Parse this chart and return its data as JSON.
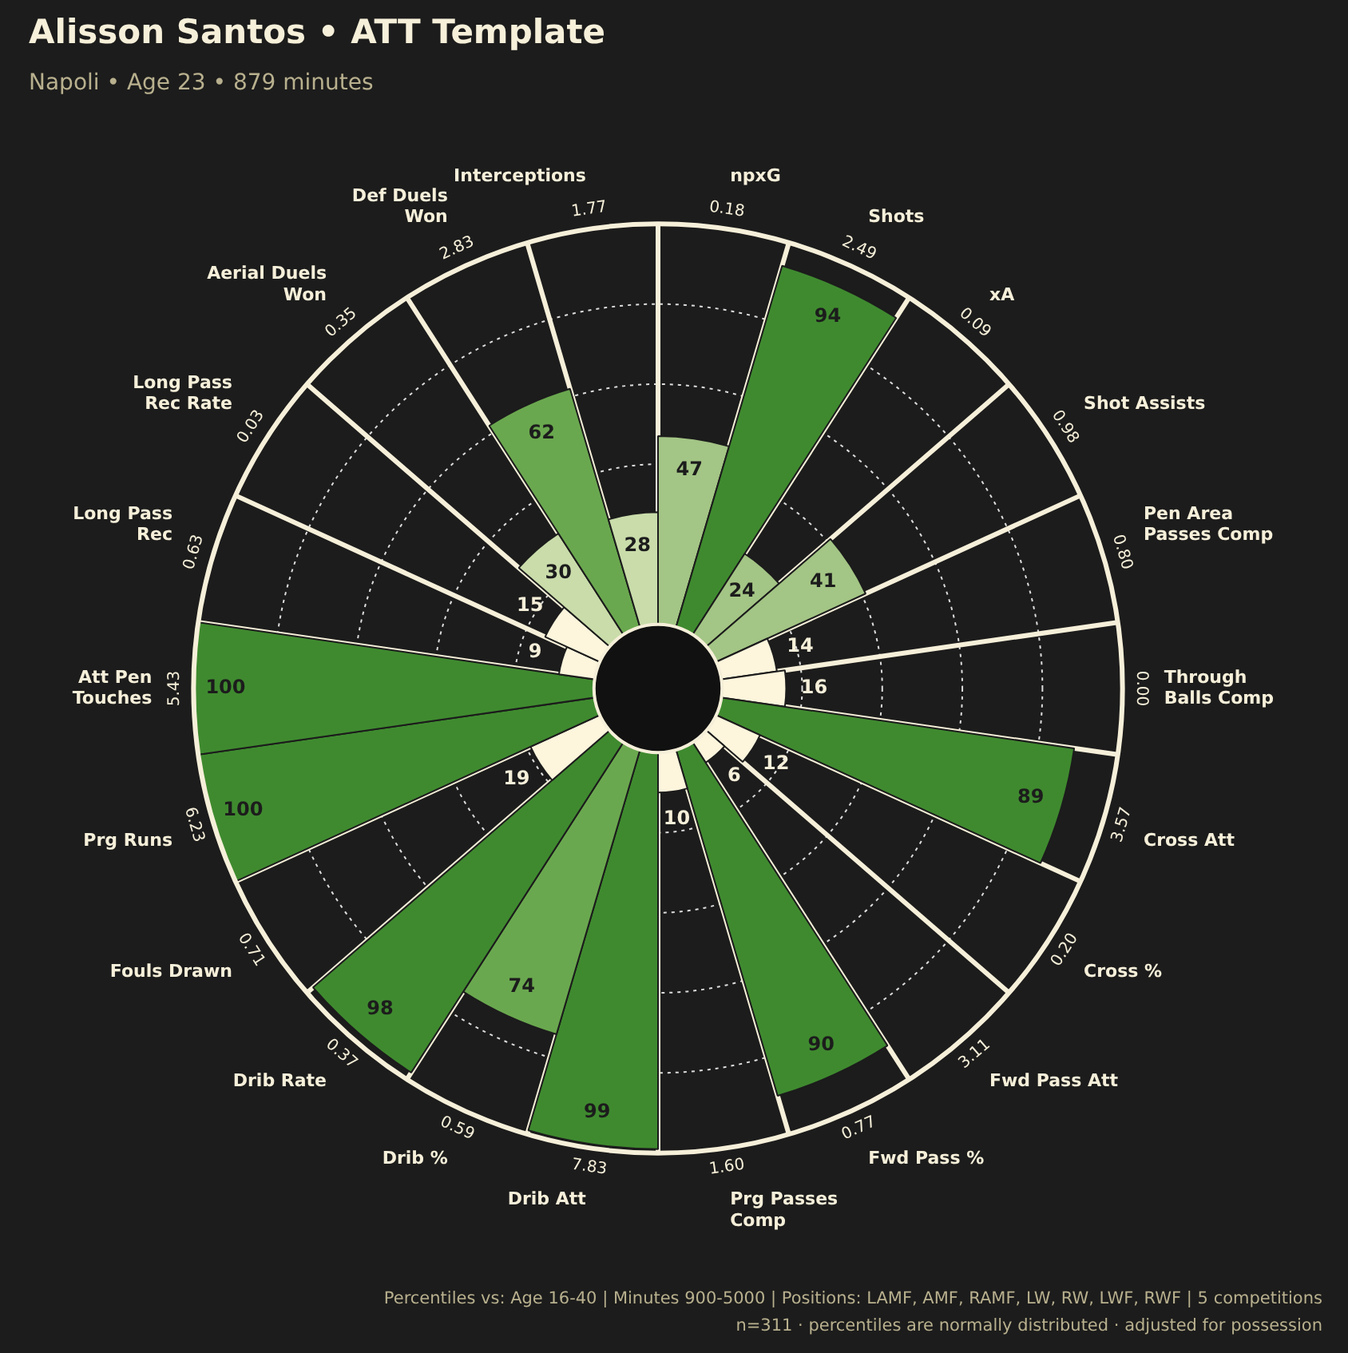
{
  "chart_data": {
    "type": "other",
    "title": "Alisson Santos • ATT Template",
    "subtitle": "Napoli • Age 23 • 879 minutes",
    "categories": [
      "npxG",
      "Shots",
      "xA",
      "Shot Assists",
      "Pen Area Passes Comp",
      "Through Balls Comp",
      "Cross Att",
      "Cross %",
      "Fwd Pass Att",
      "Fwd Pass %",
      "Prg Passes Comp",
      "Drib Att",
      "Drib %",
      "Drib Rate",
      "Fouls Drawn",
      "Prg Runs",
      "Att Pen Touches",
      "Long Pass Rec",
      "Long Pass Rec Rate",
      "Aerial Duels Won",
      "Def Duels Won",
      "Interceptions"
    ],
    "values": [
      47,
      94,
      24,
      41,
      14,
      16,
      89,
      12,
      6,
      90,
      10,
      99,
      74,
      98,
      19,
      100,
      100,
      9,
      15,
      30,
      62,
      28
    ],
    "colors": [
      "#a3c585",
      "#3f8a2f",
      "#a3c585",
      "#a3c585",
      "#fdf5dc",
      "#fdf5dc",
      "#3f8a2f",
      "#fdf5dc",
      "#fdf5dc",
      "#3f8a2f",
      "#fdf5dc",
      "#3f8a2f",
      "#6aa84f",
      "#3f8a2f",
      "#fdf5dc",
      "#3f8a2f",
      "#3f8a2f",
      "#fdf5dc",
      "#fdf5dc",
      "#c9dcaa",
      "#6aa84f",
      "#c9dcaa"
    ],
    "data_labels": true,
    "annotations": [
      {
        "text": "0.18",
        "x": "npxG"
      },
      {
        "text": "2.49",
        "x": "Shots"
      },
      {
        "text": "0.09",
        "x": "xA"
      },
      {
        "text": "0.98",
        "x": "Shot Assists"
      },
      {
        "text": "0.80",
        "x": "Pen Area Passes Comp"
      },
      {
        "text": "0.00",
        "x": "Through Balls Comp"
      },
      {
        "text": "3.57",
        "x": "Cross Att"
      },
      {
        "text": "0.20",
        "x": "Cross %"
      },
      {
        "text": "3.11",
        "x": "Fwd Pass Att"
      },
      {
        "text": "0.77",
        "x": "Fwd Pass %"
      },
      {
        "text": "1.60",
        "x": "Prg Passes Comp"
      },
      {
        "text": "7.83",
        "x": "Drib Att"
      },
      {
        "text": "0.59",
        "x": "Drib %"
      },
      {
        "text": "0.37",
        "x": "Drib Rate"
      },
      {
        "text": "0.71",
        "x": "Fouls Drawn"
      },
      {
        "text": "6.23",
        "x": "Prg Runs"
      },
      {
        "text": "5.43",
        "x": "Att Pen Touches"
      },
      {
        "text": "0.63",
        "x": "Long Pass Rec"
      },
      {
        "text": "0.03",
        "x": "Long Pass Rec Rate"
      },
      {
        "text": "0.35",
        "x": "Aerial Duels Won"
      },
      {
        "text": "2.83",
        "x": "Def Duels Won"
      },
      {
        "text": "1.77",
        "x": "Interceptions"
      },
      "Percentiles vs: Age 16-40 | Minutes 900-5000 | Positions: LAMF, AMF, RAMF, LW, RW, LWF, RWF | 5 competitions",
      "n=311 · percentiles are normally distributed · adjusted for possession"
    ]
  }
}
